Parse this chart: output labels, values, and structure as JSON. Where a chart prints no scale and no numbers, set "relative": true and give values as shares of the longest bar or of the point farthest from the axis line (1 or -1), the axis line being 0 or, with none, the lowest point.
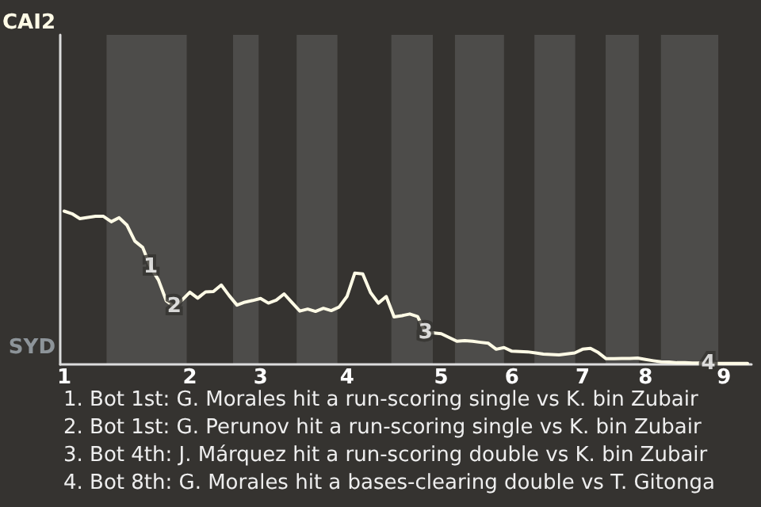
{
  "chart_data": {
    "type": "line",
    "relative": true,
    "categories": [
      "1",
      null,
      null,
      null,
      null,
      null,
      null,
      null,
      null,
      null,
      null,
      null,
      null,
      null,
      null,
      null,
      "2",
      null,
      null,
      null,
      null,
      null,
      null,
      null,
      null,
      "3",
      null,
      null,
      null,
      null,
      null,
      null,
      null,
      null,
      null,
      null,
      "4",
      null,
      null,
      null,
      null,
      null,
      null,
      null,
      null,
      null,
      null,
      null,
      "5",
      null,
      null,
      null,
      null,
      null,
      null,
      null,
      null,
      "6",
      null,
      null,
      null,
      null,
      null,
      null,
      null,
      null,
      "7",
      null,
      null,
      null,
      null,
      null,
      null,
      null,
      "8",
      null,
      null,
      null,
      null,
      null,
      null,
      null,
      null,
      null,
      "9",
      null,
      null,
      null
    ],
    "series": [
      {
        "color": "#fffbe6",
        "values": [
          1,
          0.983,
          0.951,
          0.959,
          0.966,
          0.966,
          0.931,
          0.957,
          0.908,
          0.804,
          0.763,
          0.634,
          0.551,
          0.415,
          0.376,
          0.419,
          0.471,
          0.432,
          0.473,
          0.475,
          0.518,
          0.449,
          0.387,
          0.406,
          0.417,
          0.43,
          0.4,
          0.419,
          0.46,
          0.404,
          0.348,
          0.361,
          0.346,
          0.366,
          0.351,
          0.374,
          0.443,
          0.596,
          0.591,
          0.469,
          0.4,
          0.443,
          0.31,
          0.318,
          0.329,
          0.312,
          0.206,
          0.206,
          0.2,
          0.176,
          0.151,
          0.155,
          0.151,
          0.144,
          0.138,
          0.099,
          0.11,
          0.086,
          0.084,
          0.082,
          0.075,
          0.067,
          0.065,
          0.062,
          0.069,
          0.075,
          0.099,
          0.105,
          0.077,
          0.037,
          0.037,
          0.039,
          0.039,
          0.041,
          0.032,
          0.024,
          0.017,
          0.015,
          0.011,
          0.011,
          0.009,
          0.009,
          0.006,
          0.006,
          0.006,
          0.006,
          0.006,
          0.006
        ]
      }
    ],
    "annotations": [
      "CAI2",
      "SYD",
      {
        "text": "1",
        "y": 0.634
      },
      {
        "text": "2",
        "y": 0.376
      },
      {
        "text": "3",
        "y": 0.206
      },
      {
        "text": "4",
        "y": 0.006
      },
      "1. Bot 1st: G. Morales hit a run-scoring single vs K. bin Zubair",
      "2. Bot 1st: G. Perunov hit a run-scoring single vs K. bin Zubair",
      "3. Bot 4th: J. Márquez hit a run-scoring double vs K. bin Zubair",
      "4. Bot 8th: G. Morales hit a bases-clearing double vs T. Gitonga"
    ],
    "marker": "none",
    "line_style": "solid"
  }
}
